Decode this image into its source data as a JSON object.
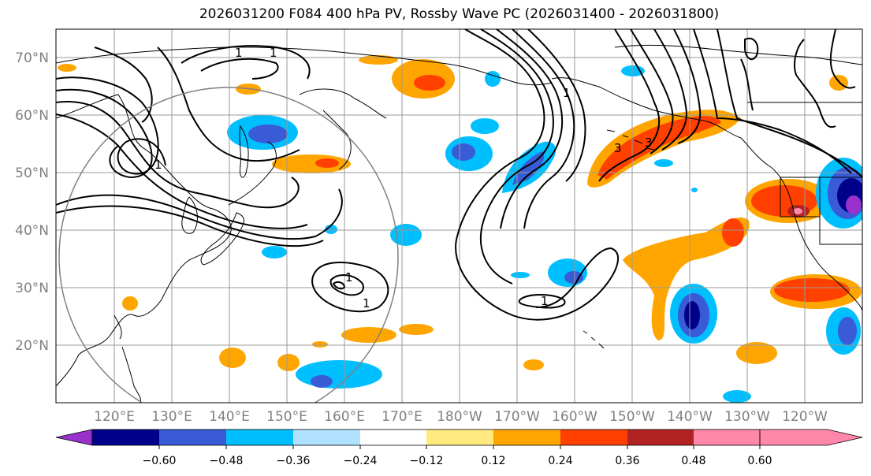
{
  "title": "2026031200 F084 400 hPa PV, Rossby Wave PC (2026031400 - 2026031800)",
  "map": {
    "latitude_labels": [
      "70°N",
      "60°N",
      "50°N",
      "40°N",
      "30°N",
      "20°N"
    ],
    "longitude_labels": [
      "120°E",
      "130°E",
      "140°E",
      "150°E",
      "160°E",
      "170°E",
      "180°W",
      "170°W",
      "160°W",
      "150°W",
      "140°W",
      "130°W",
      "120°W"
    ],
    "contour_labels": [
      "1",
      "1",
      "1",
      "1",
      "1",
      "1",
      "1",
      "3",
      "3"
    ]
  },
  "colorbar": {
    "ticks": [
      "−0.60",
      "−0.48",
      "−0.36",
      "−0.24",
      "−0.12",
      "0.12",
      "0.24",
      "0.36",
      "0.48",
      "0.60"
    ],
    "colors": [
      "#9932cc",
      "#00008b",
      "#3a5bd6",
      "#00bfff",
      "#b0e2ff",
      "#ffffff",
      "#ffea80",
      "#ffa500",
      "#ff4000",
      "#b22222",
      "#ff88aa"
    ]
  },
  "colors": {
    "grid": "#9a9a9a",
    "coast": "#000000",
    "contour": "#000000",
    "circle": "#808080"
  }
}
